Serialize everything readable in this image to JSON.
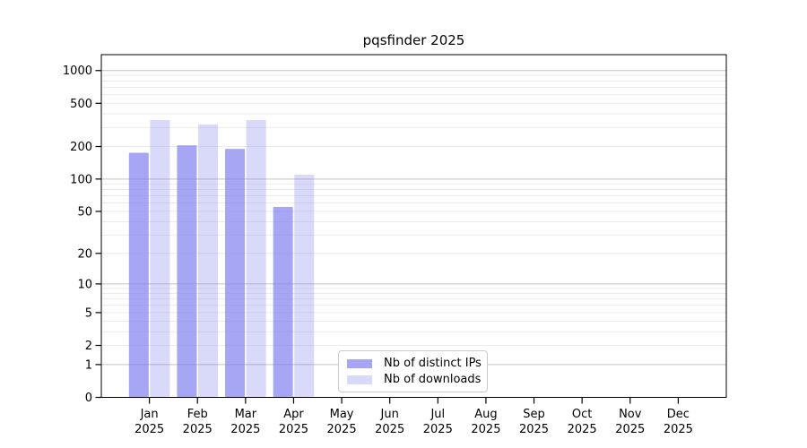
{
  "chart_data": {
    "type": "bar",
    "title": "pqsfinder 2025",
    "scale": "log1p",
    "year": "2025",
    "categories": [
      "Jan 2025",
      "Feb 2025",
      "Mar 2025",
      "Apr 2025",
      "May 2025",
      "Jun 2025",
      "Jul 2025",
      "Aug 2025",
      "Sep 2025",
      "Oct 2025",
      "Nov 2025",
      "Dec 2025"
    ],
    "month_labels": [
      "Jan",
      "Feb",
      "Mar",
      "Apr",
      "May",
      "Jun",
      "Jul",
      "Aug",
      "Sep",
      "Oct",
      "Nov",
      "Dec"
    ],
    "series": [
      {
        "name": "Nb of distinct IPs",
        "fill": "rgba(128,128,240,0.7)",
        "values": [
          175,
          205,
          190,
          55,
          null,
          null,
          null,
          null,
          null,
          null,
          null,
          null
        ]
      },
      {
        "name": "Nb of downloads",
        "fill": "rgba(128,128,240,0.3)",
        "values": [
          350,
          320,
          350,
          110,
          null,
          null,
          null,
          null,
          null,
          null,
          null,
          null
        ]
      }
    ],
    "y_ticks": [
      0,
      1,
      2,
      5,
      10,
      20,
      50,
      100,
      200,
      500,
      1000
    ],
    "ylim": [
      0,
      1400
    ],
    "grid": true,
    "legend_position": "inside-bottom-center",
    "xlabel": "",
    "ylabel": ""
  },
  "colors": {
    "bar_base": "#8080f0",
    "grid_major": "#c2c2c2",
    "grid_minor": "#ebebeb",
    "axis": "#000000",
    "text": "#000000",
    "legend_border": "#cbcbcb",
    "background": "#ffffff"
  }
}
